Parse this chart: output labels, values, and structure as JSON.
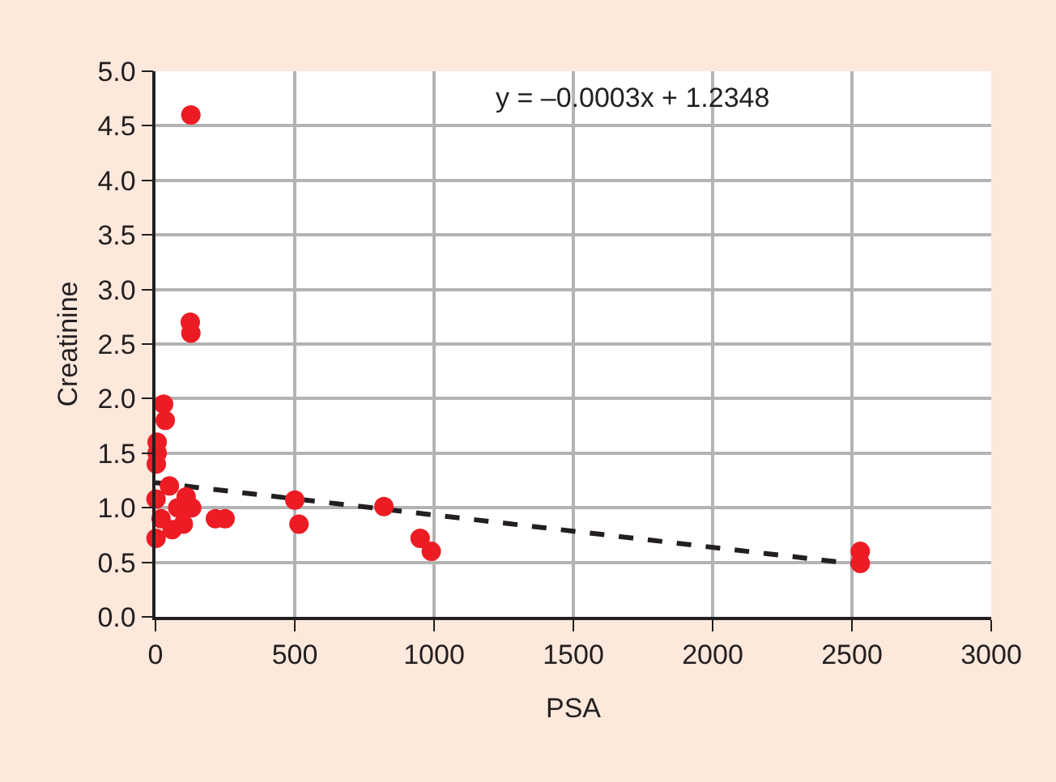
{
  "chart_data": {
    "type": "scatter",
    "xlabel": "PSA",
    "ylabel": "Creatinine",
    "annotations": [
      "y = –0.0003x + 1.2348"
    ],
    "series": [
      {
        "color": "#ed1c24",
        "marker": "circle",
        "x": [
          127,
          125,
          127,
          29,
          35,
          6,
          6,
          3,
          2,
          2,
          20,
          50,
          60,
          80,
          110,
          130,
          100,
          215,
          250,
          500,
          515,
          820,
          950,
          990,
          2530,
          2530
        ],
        "values": [
          4.6,
          2.7,
          2.6,
          1.95,
          1.8,
          1.6,
          1.5,
          1.4,
          1.08,
          0.72,
          0.9,
          1.2,
          0.8,
          1.0,
          1.1,
          1.0,
          0.85,
          0.9,
          0.9,
          1.07,
          0.85,
          1.01,
          0.72,
          0.6,
          0.6,
          0.49
        ]
      },
      {
        "type": "line",
        "color": "#231f20",
        "line_style": "dashed",
        "x": [
          0,
          2530
        ],
        "values": [
          1.23,
          0.48
        ]
      }
    ],
    "xlim": [
      0,
      3000
    ],
    "xticks": [
      0,
      500,
      1000,
      1500,
      2000,
      2500,
      3000
    ],
    "ylim": [
      0,
      5
    ],
    "yticks": [
      {
        "value": 0,
        "label": "0.0"
      },
      {
        "value": 0.5,
        "label": "0.5"
      },
      {
        "value": 1,
        "label": "1.0"
      },
      {
        "value": 1.5,
        "label": "1.5"
      },
      {
        "value": 2,
        "label": "2.0"
      },
      {
        "value": 2.5,
        "label": "2.5"
      },
      {
        "value": 3,
        "label": "3.0"
      },
      {
        "value": 3.5,
        "label": "3.5"
      },
      {
        "value": 4,
        "label": "4.0"
      },
      {
        "value": 4.5,
        "label": "4.5"
      },
      {
        "value": 5,
        "label": "5.0"
      }
    ],
    "grid": true,
    "legend": false
  }
}
